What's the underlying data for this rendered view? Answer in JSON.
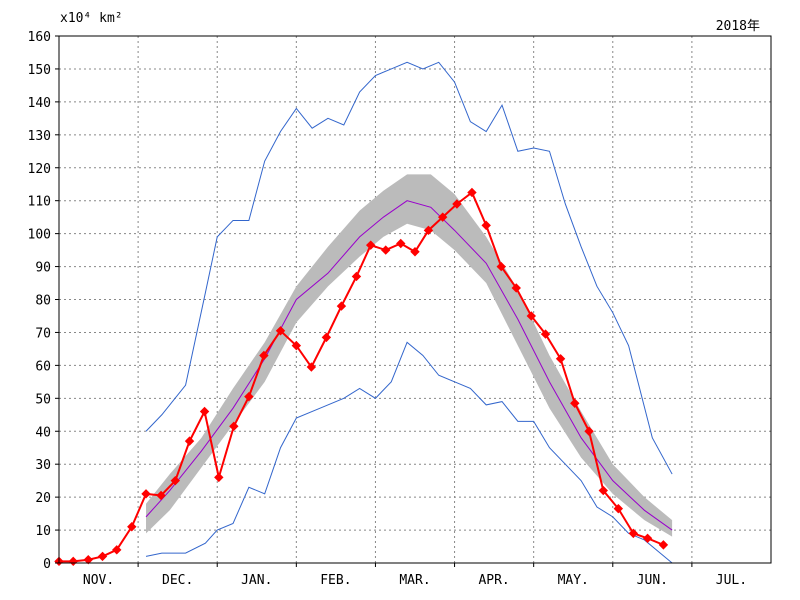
{
  "chart_data": {
    "type": "line",
    "year_label": "2018年",
    "y_unit": "x10⁴ km²",
    "ylim": [
      0,
      160
    ],
    "y_ticks": [
      0,
      10,
      20,
      30,
      40,
      50,
      60,
      70,
      80,
      90,
      100,
      110,
      120,
      130,
      140,
      150,
      160
    ],
    "x_ticks": [
      "NOV.",
      "DEC.",
      "JAN.",
      "FEB.",
      "MAR.",
      "APR.",
      "MAY.",
      "JUN.",
      "JUL."
    ],
    "grid": true,
    "colors": {
      "current": "#ff0000",
      "mean": "#9900cc",
      "extremes": "#3366cc",
      "band": "#bbbbbb"
    },
    "current_year": {
      "x": [
        0.0,
        0.18,
        0.37,
        0.55,
        0.73,
        0.92,
        1.1,
        1.29,
        1.47,
        1.65,
        1.84,
        2.02,
        2.21,
        2.4,
        2.59,
        2.8,
        3.0,
        3.19,
        3.38,
        3.57,
        3.76,
        3.94,
        4.13,
        4.32,
        4.5,
        4.67,
        4.85,
        5.03,
        5.22,
        5.4,
        5.59,
        5.78,
        5.97,
        6.15,
        6.34,
        6.52,
        6.7
      ],
      "y": [
        0.5,
        0.5,
        1,
        2,
        4,
        11,
        21,
        20.5,
        25,
        37,
        46,
        26,
        41.5,
        50.5,
        63,
        70.5,
        66,
        59.5,
        68.5,
        78,
        87,
        96.5,
        95,
        97,
        94.5,
        101,
        105,
        109,
        112.5,
        102.5,
        90,
        83.5,
        75,
        69.5,
        62,
        48.5,
        40
      ]
    },
    "current_year_tail": {
      "x": [
        6.7,
        6.88,
        7.07,
        7.26,
        7.44
      ],
      "y": [
        40,
        22,
        16.5,
        9,
        7.5
      ]
    },
    "current_year_end": {
      "x": [
        7.44,
        7.64
      ],
      "y": [
        7.5,
        5.5
      ]
    },
    "mean": {
      "x": [
        1.1,
        1.4,
        1.8,
        2.2,
        2.6,
        3.0,
        3.4,
        3.8,
        4.1,
        4.4,
        4.7,
        5.0,
        5.4,
        5.8,
        6.2,
        6.6,
        7.0,
        7.4,
        7.75
      ],
      "y": [
        14,
        22,
        34,
        47,
        62,
        80,
        88,
        99,
        105,
        110,
        108,
        101,
        91,
        74,
        55,
        38,
        25,
        16,
        10
      ]
    },
    "max": {
      "x": [
        1.1,
        1.3,
        1.6,
        1.85,
        2.0,
        2.2,
        2.4,
        2.6,
        2.8,
        3.0,
        3.2,
        3.4,
        3.6,
        3.8,
        4.0,
        4.2,
        4.4,
        4.6,
        4.8,
        5.0,
        5.2,
        5.4,
        5.6,
        5.8,
        6.0,
        6.2,
        6.4,
        6.6,
        6.8,
        7.0,
        7.2,
        7.5,
        7.75
      ],
      "y": [
        40,
        45,
        54,
        82,
        99,
        104,
        104,
        122,
        131,
        138,
        132,
        135,
        133,
        143,
        148,
        150,
        152,
        150,
        152,
        146,
        134,
        131,
        139,
        125,
        126,
        125,
        109,
        96,
        84,
        76,
        66,
        38,
        27
      ]
    },
    "min": {
      "x": [
        1.1,
        1.3,
        1.6,
        1.85,
        2.0,
        2.2,
        2.4,
        2.6,
        2.8,
        3.0,
        3.3,
        3.6,
        3.8,
        4.0,
        4.2,
        4.4,
        4.6,
        4.8,
        5.0,
        5.2,
        5.4,
        5.6,
        5.8,
        6.0,
        6.2,
        6.4,
        6.6,
        6.8,
        7.0,
        7.2,
        7.4,
        7.6,
        7.75
      ],
      "y": [
        2,
        3,
        3,
        6,
        10,
        12,
        23,
        21,
        35,
        44,
        47,
        50,
        53,
        50,
        55,
        67,
        63,
        57,
        55,
        53,
        48,
        49,
        43,
        43,
        35,
        30,
        25,
        17,
        14,
        9,
        7,
        3,
        0
      ]
    },
    "band": {
      "x": [
        1.1,
        1.4,
        1.8,
        2.2,
        2.6,
        3.0,
        3.4,
        3.8,
        4.1,
        4.4,
        4.7,
        5.0,
        5.4,
        5.8,
        6.2,
        6.6,
        7.0,
        7.4,
        7.75
      ],
      "upper": [
        18,
        27,
        38,
        53,
        67,
        84,
        96,
        107,
        113,
        118,
        118,
        112,
        99,
        83,
        63,
        46,
        30,
        20,
        13
      ],
      "lower": [
        9,
        16,
        29,
        42,
        55,
        73,
        84,
        93,
        99,
        103,
        101,
        95,
        85,
        66,
        47,
        32,
        21,
        13,
        8
      ]
    }
  }
}
